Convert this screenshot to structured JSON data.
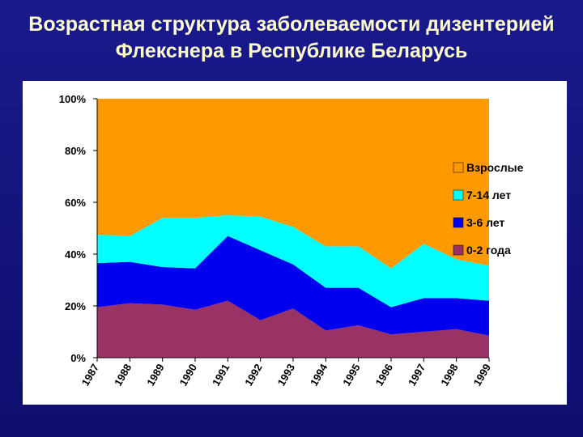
{
  "title_lines": [
    "Возрастная структура заболеваемости дизентерией",
    "Флекснера в Республике Беларусь"
  ],
  "colors": {
    "background": "#13137a",
    "panel": "#ffffff",
    "adults": "#ff9900",
    "age_7_14": "#00ffff",
    "age_3_6": "#0000ee",
    "age_0_2": "#993366"
  },
  "chart_data": {
    "type": "area",
    "stacked": true,
    "percent": true,
    "categories": [
      "1987",
      "1988",
      "1989",
      "1990",
      "1991",
      "1992",
      "1993",
      "1994",
      "1995",
      "1996",
      "1997",
      "1998",
      "1999"
    ],
    "series": [
      {
        "name": "0-2 года",
        "values": [
          19.5,
          21,
          20.5,
          18.5,
          22,
          14.5,
          19,
          10.5,
          12.5,
          9,
          10,
          11,
          8.5
        ],
        "color": "#993366"
      },
      {
        "name": "3-6 лет",
        "values": [
          17,
          16,
          14.5,
          16,
          25,
          27,
          17,
          16.5,
          14.5,
          10.5,
          13,
          12,
          13.5
        ],
        "color": "#0000ee"
      },
      {
        "name": "7-14 лет",
        "values": [
          11,
          10,
          19,
          19.5,
          8,
          13,
          14.5,
          16,
          16,
          15,
          21,
          15,
          13.5
        ],
        "color": "#00ffff"
      },
      {
        "name": "Взрослые",
        "values": [
          52.5,
          53,
          46,
          46,
          45,
          45.5,
          49.5,
          57,
          57,
          65.5,
          56,
          62,
          64.5
        ],
        "color": "#ff9900"
      }
    ],
    "ylim": [
      0,
      100
    ],
    "yticks": [
      "0%",
      "20%",
      "40%",
      "60%",
      "80%",
      "100%"
    ],
    "legend": {
      "placement": "right",
      "order": [
        "Взрослые",
        "7-14 лет",
        "3-6 лет",
        "0-2 года"
      ]
    },
    "grid": false
  }
}
